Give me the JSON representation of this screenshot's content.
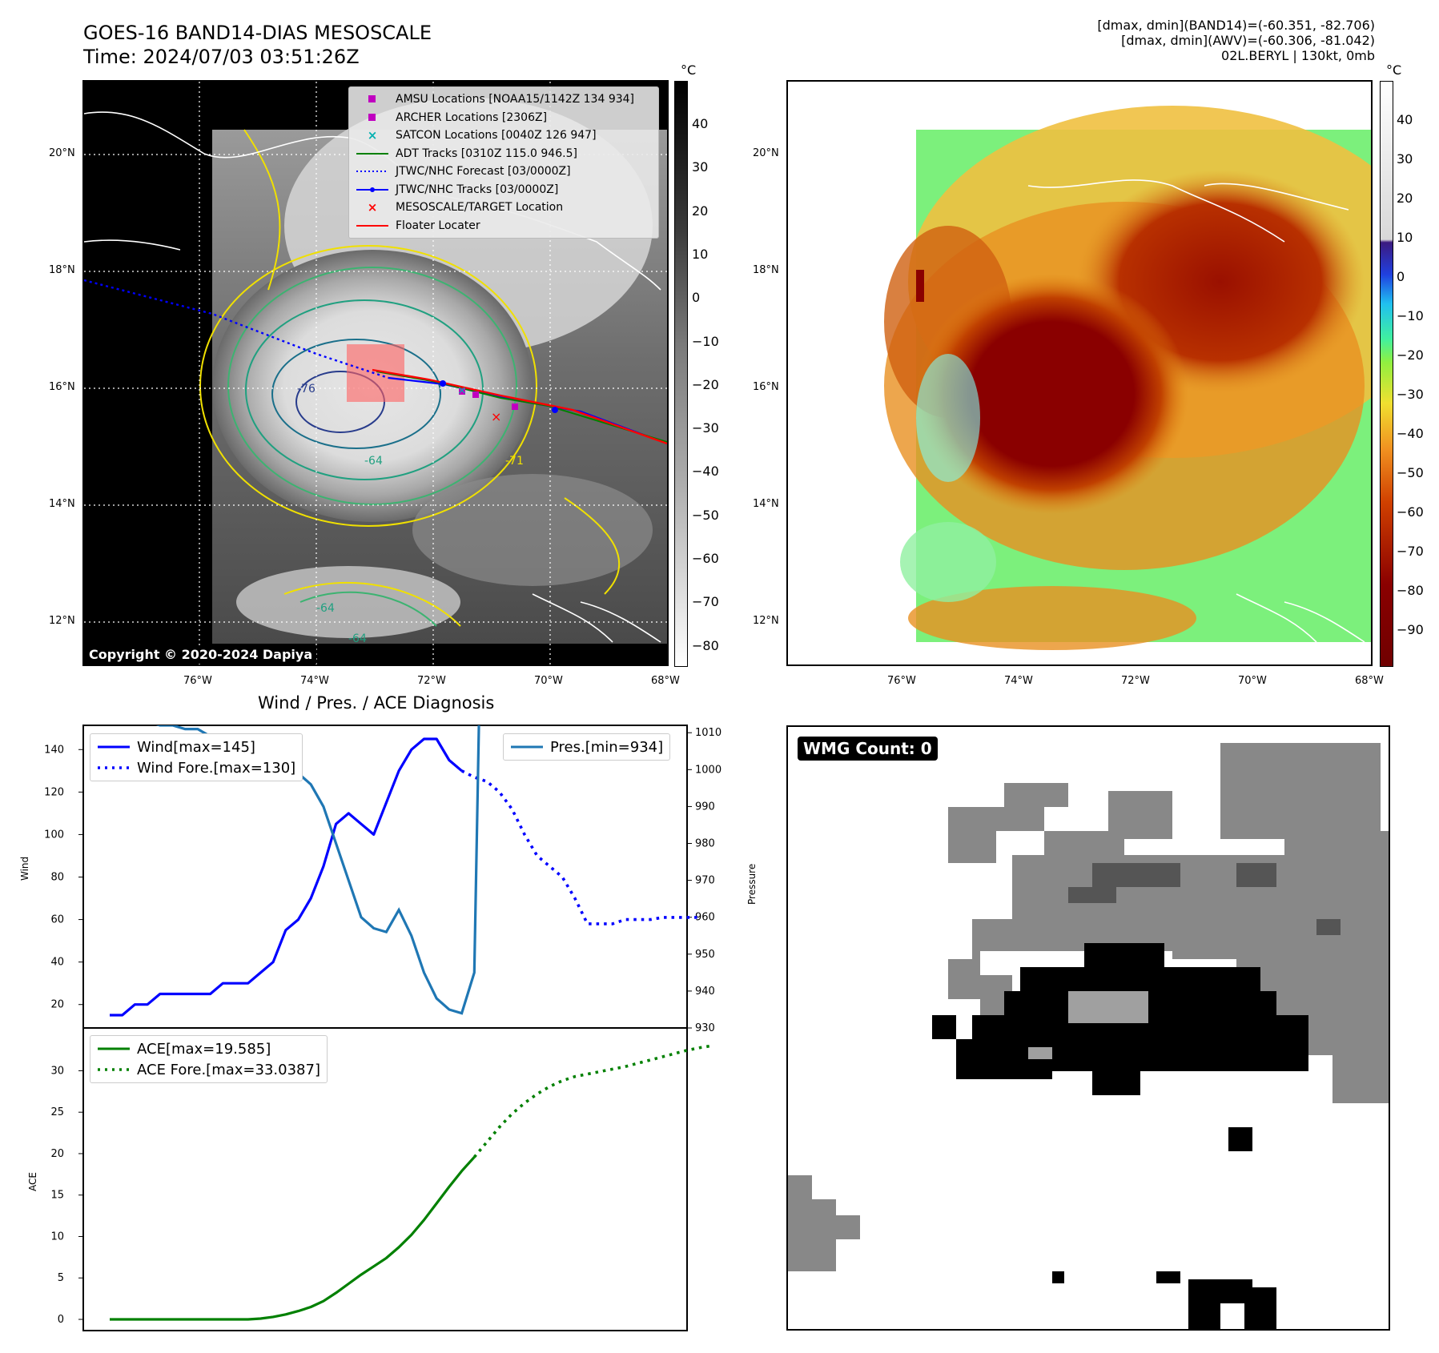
{
  "header": {
    "title_line1": "GOES-16 BAND14-DIAS MESOSCALE",
    "title_line2": "Time: 2024/07/03 03:51:26Z",
    "info_line1": "[dmax, dmin](BAND14)=(-60.351, -82.706)",
    "info_line2": "[dmax, dmin](AWV)=(-60.306, -81.042)",
    "info_line3": "02L.BERYL | 130kt, 0mb"
  },
  "map": {
    "lat_labels": [
      "20°N",
      "18°N",
      "16°N",
      "14°N",
      "12°N"
    ],
    "lon_labels": [
      "76°W",
      "74°W",
      "72°W",
      "70°W",
      "68°W"
    ],
    "copyright": "Copyright © 2020-2024 Dapiya",
    "contour_labels": [
      "-64",
      "-64",
      "-71",
      "-76",
      "-64"
    ],
    "legend": [
      {
        "label": "AMSU Locations [NOAA15/1142Z 134 934]",
        "symbol": "square",
        "color": "#c000c0"
      },
      {
        "label": "ARCHER Locations [2306Z]",
        "symbol": "square",
        "color": "#c000c0"
      },
      {
        "label": "SATCON Locations [0040Z 126 947]",
        "symbol": "x",
        "color": "#00b0b0"
      },
      {
        "label": "ADT Tracks [0310Z 115.0 946.5]",
        "symbol": "line",
        "color": "#008000"
      },
      {
        "label": "JTWC/NHC Forecast [03/0000Z]",
        "symbol": "dotted",
        "color": "#0000ff"
      },
      {
        "label": "JTWC/NHC Tracks [03/0000Z]",
        "symbol": "line-dot",
        "color": "#0000ff"
      },
      {
        "label": "MESOSCALE/TARGET Location",
        "symbol": "x",
        "color": "#ff0000"
      },
      {
        "label": "Floater Locater",
        "symbol": "line",
        "color": "#ff0000"
      }
    ]
  },
  "colorbar_ir": {
    "unit": "°C",
    "ticks": [
      "40",
      "30",
      "20",
      "10",
      "0",
      "−10",
      "−20",
      "−30",
      "−40",
      "−50",
      "−60",
      "−70",
      "−80"
    ]
  },
  "colorbar_awv": {
    "unit": "°C",
    "ticks": [
      "40",
      "30",
      "20",
      "10",
      "0",
      "−10",
      "−20",
      "−30",
      "−40",
      "−50",
      "−60",
      "−70",
      "−80",
      "−90"
    ]
  },
  "diag": {
    "title": "Wind / Pres. / ACE Diagnosis",
    "wind_ylabel": "Wind",
    "pres_ylabel": "Pressure",
    "ace_ylabel": "ACE",
    "wind_legend": [
      "Wind[max=145]",
      "Wind Fore.[max=130]"
    ],
    "pres_legend": [
      "Pres.[min=934]"
    ],
    "ace_legend": [
      "ACE[max=19.585]",
      "ACE Fore.[max=33.0387]"
    ],
    "wind_ticks": [
      "140",
      "120",
      "100",
      "80",
      "60",
      "40",
      "20"
    ],
    "pres_ticks": [
      "1010",
      "1000",
      "990",
      "980",
      "970",
      "960",
      "950",
      "940",
      "930"
    ],
    "ace_ticks": [
      "30",
      "25",
      "20",
      "15",
      "10",
      "5",
      "0"
    ]
  },
  "wmg": {
    "label": "WMG Count: 0"
  },
  "chart_data": [
    {
      "type": "line",
      "title": "Wind / Pres. / ACE Diagnosis",
      "ylabel": "Wind",
      "ylim": [
        10,
        150
      ],
      "series": [
        {
          "name": "Wind[max=145]",
          "style": "solid",
          "color": "#0000ff",
          "values": [
            15,
            15,
            20,
            20,
            25,
            25,
            25,
            25,
            25,
            30,
            30,
            30,
            35,
            40,
            55,
            60,
            70,
            85,
            105,
            110,
            105,
            100,
            115,
            130,
            140,
            145,
            145,
            135,
            130
          ]
        },
        {
          "name": "Wind Fore.[max=130]",
          "style": "dotted",
          "color": "#0000ff",
          "start_index": 28,
          "values": [
            130,
            127,
            125,
            120,
            112,
            100,
            90,
            85,
            80,
            70,
            58,
            58,
            58,
            60,
            60,
            60,
            61,
            61,
            61,
            61
          ]
        }
      ]
    },
    {
      "type": "line",
      "ylabel": "Pressure",
      "ylim": [
        930,
        1012
      ],
      "series": [
        {
          "name": "Pres.[min=934]",
          "color": "#1f77b4",
          "values": [
            1015,
            1015,
            1015,
            1013,
            1012,
            1012,
            1011,
            1011,
            1009,
            1009,
            1008,
            1008,
            1007,
            1006,
            1003,
            999,
            996,
            990,
            980,
            970,
            960,
            957,
            956,
            962,
            955,
            945,
            938,
            935,
            934,
            945,
            1015
          ]
        }
      ]
    },
    {
      "type": "line",
      "ylabel": "ACE",
      "ylim": [
        -1.5,
        34.5
      ],
      "series": [
        {
          "name": "ACE[max=19.585]",
          "style": "solid",
          "color": "#008000",
          "values": [
            0,
            0,
            0,
            0,
            0,
            0,
            0,
            0,
            0,
            0,
            0,
            0,
            0.1,
            0.3,
            0.6,
            1.0,
            1.5,
            2.2,
            3.2,
            4.3,
            5.4,
            6.4,
            7.4,
            8.7,
            10.2,
            12.0,
            14.0,
            16.0,
            17.9,
            19.585
          ]
        },
        {
          "name": "ACE Fore.[max=33.0387]",
          "style": "dotted",
          "color": "#008000",
          "start_index": 29,
          "values": [
            19.585,
            21.4,
            23.2,
            24.8,
            26.1,
            27.2,
            28.1,
            28.8,
            29.3,
            29.6,
            29.9,
            30.2,
            30.5,
            30.9,
            31.3,
            31.7,
            32.1,
            32.5,
            32.8,
            33.0387
          ]
        }
      ]
    }
  ]
}
